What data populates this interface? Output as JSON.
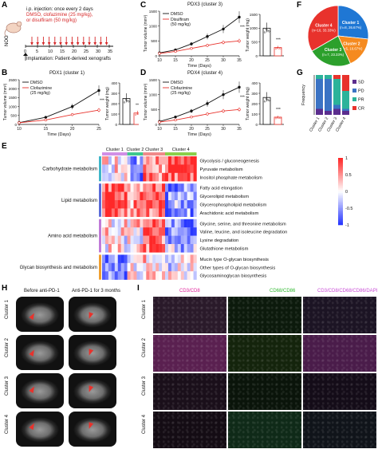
{
  "panels": {
    "A": {
      "label": "A",
      "species": "NOG",
      "injection_line1": "i.p. injection: once every 2 days",
      "injection_line2": "DMSO, clofazimine (25 mg/kg),",
      "injection_line3": "or disulfiram (50 mg/kg)",
      "timeline_ticks": [
        "0",
        "5",
        "10",
        "15",
        "20",
        "25",
        "30",
        "35"
      ],
      "implantation": "Implantation: Patient-derived xenografts",
      "colors": {
        "arrow": "#d62728",
        "text_red": "#d62728"
      }
    },
    "B": {
      "label": "B",
      "title": "PDX1 (cluster 1)",
      "legend": [
        "DMSO",
        "Clofazimine",
        "(25 mg/kg)"
      ],
      "significance": "***",
      "bar_significance": "***"
    },
    "C": {
      "label": "C",
      "title": "PDX3 (cluster 3)",
      "legend": [
        "DMSO",
        "Disulfiram",
        "(50 mg/kg)"
      ],
      "significance": "***",
      "bar_significance": "***"
    },
    "D": {
      "label": "D",
      "title": "PDX4 (cluster 4)",
      "legend": [
        "DMSO",
        "Clofazimine",
        "(25 mg/kg)"
      ],
      "significance": "***",
      "bar_significance": "***"
    },
    "E": {
      "label": "E",
      "cluster_labels": [
        "Cluster 1",
        "Cluster 2",
        "Cluster 3",
        "Cluster 4"
      ],
      "groups": [
        "Carbohydrate metabolism",
        "Lipid metabolism",
        "Amino acid metabolism",
        "Glycan biosynthesis and metabolism"
      ],
      "pathways": [
        "Glycolysis / gluconeogenesis",
        "Pyruvate metabolism",
        "Inositol phosphate metabolism",
        "Fatty acid elongation",
        "Glycerolipid metabolism",
        "Glycerophospholipid metabolism",
        "Arachidonic acid metabolism",
        "Glycine, serine, and threonine metabolism",
        "Valine, leucine, and isoleucine degradation",
        "Lysine degradation",
        "Glutathione metabolism",
        "Mucin type O-glycan biosynthesis",
        "Other types of O-glycan biosynthesis",
        "Glycosaminoglycan biosynthesis"
      ],
      "colorbar_ticks": [
        "1",
        "0.5",
        "0",
        "-0.5",
        "-1"
      ]
    },
    "F": {
      "label": "F",
      "slices": [
        {
          "name": "Cluster 1",
          "detail": "(n=8, 26.67%)",
          "value": 26.67,
          "color": "#1f77d4"
        },
        {
          "name": "Cluster 2",
          "detail": "(n=5, 16.67%)",
          "value": 16.67,
          "color": "#f58a1f"
        },
        {
          "name": "Cluster 3",
          "detail": "(n=7, 23.33%)",
          "value": 23.33,
          "color": "#2ca02c"
        },
        {
          "name": "Cluster 4",
          "detail": "(n=10, 33.33%)",
          "value": 33.33,
          "color": "#e8322c"
        }
      ]
    },
    "G": {
      "label": "G",
      "ylabel": "Frequency",
      "categories": [
        "Cluster 1",
        "Cluster 2",
        "Cluster 3",
        "Cluster 4"
      ],
      "legend": [
        "SD",
        "PD",
        "PR",
        "CR"
      ],
      "legend_colors": [
        "#5b2d8e",
        "#3b73c4",
        "#2bb39a",
        "#e8322c"
      ]
    },
    "H": {
      "label": "H",
      "col1": "Before anti-PD-1",
      "col2": "Anti-PD-1 for 3 months",
      "rows": [
        "Cluster 1",
        "Cluster 2",
        "Cluster 3",
        "Cluster 4"
      ]
    },
    "I": {
      "label": "I",
      "col1": "CD3/CD8",
      "col2": "CD68/CD86",
      "col3": "CD3/CD8/CD68/CD86/DAPI",
      "rows": [
        "Cluster 1",
        "Cluster 2",
        "Cluster 3",
        "Cluster 4"
      ]
    }
  },
  "chart_data": [
    {
      "type": "line",
      "panel": "B",
      "title": "PDX1 (cluster 1)",
      "xlabel": "Time (Days)",
      "ylabel": "Tumor volume (mm³)",
      "x": [
        10,
        15,
        20,
        25
      ],
      "xlim": [
        10,
        25
      ],
      "ylim": [
        0,
        2500
      ],
      "yticks": [
        0,
        500,
        1000,
        1500,
        2000,
        2500
      ],
      "series": [
        {
          "name": "DMSO",
          "color": "#111111",
          "values": [
            100,
            400,
            1000,
            1900
          ]
        },
        {
          "name": "Clofazimine (25 mg/kg)",
          "color": "#e8322c",
          "values": [
            90,
            250,
            550,
            800
          ]
        }
      ]
    },
    {
      "type": "bar",
      "panel": "B",
      "ylabel": "Tumor weight (mg)",
      "ylim": [
        0,
        400
      ],
      "yticks": [
        0,
        100,
        200,
        300,
        400
      ],
      "categories": [
        "DMSO",
        "Clofazimine"
      ],
      "values": [
        250,
        110
      ],
      "colors": [
        "#111111",
        "#e8322c"
      ]
    },
    {
      "type": "line",
      "panel": "C",
      "title": "PDX3 (cluster 3)",
      "xlabel": "Time (Days)",
      "ylabel": "Tumor volume (mm³)",
      "x": [
        10,
        15,
        20,
        25,
        30,
        35
      ],
      "xlim": [
        10,
        35
      ],
      "ylim": [
        0,
        1500
      ],
      "yticks": [
        0,
        500,
        1000,
        1500
      ],
      "series": [
        {
          "name": "DMSO",
          "color": "#111111",
          "values": [
            100,
            200,
            400,
            650,
            900,
            1300
          ]
        },
        {
          "name": "Disulfiram (50 mg/kg)",
          "color": "#e8322c",
          "values": [
            80,
            150,
            250,
            350,
            450,
            500
          ]
        }
      ]
    },
    {
      "type": "bar",
      "panel": "C",
      "ylabel": "Tumor weight (mg)",
      "ylim": [
        0,
        1500
      ],
      "yticks": [
        0,
        500,
        1000,
        1500
      ],
      "categories": [
        "DMSO",
        "Disulfiram"
      ],
      "values": [
        1000,
        300
      ],
      "colors": [
        "#111111",
        "#e8322c"
      ]
    },
    {
      "type": "line",
      "panel": "D",
      "title": "PDX4 (cluster 4)",
      "xlabel": "Time (Days)",
      "ylabel": "Tumor volume (mm³)",
      "x": [
        10,
        15,
        20,
        25,
        30,
        35
      ],
      "xlim": [
        10,
        35
      ],
      "ylim": [
        0,
        1500
      ],
      "yticks": [
        0,
        500,
        1000,
        1500
      ],
      "series": [
        {
          "name": "DMSO",
          "color": "#111111",
          "values": [
            100,
            250,
            450,
            700,
            1000,
            1250
          ]
        },
        {
          "name": "Clofazimine (25 mg/kg)",
          "color": "#e8322c",
          "values": [
            80,
            150,
            250,
            350,
            450,
            500
          ]
        }
      ]
    },
    {
      "type": "bar",
      "panel": "D",
      "ylabel": "Tumor weight (mg)",
      "ylim": [
        0,
        400
      ],
      "yticks": [
        0,
        100,
        200,
        300,
        400
      ],
      "categories": [
        "DMSO",
        "Clofazimine"
      ],
      "values": [
        260,
        70
      ],
      "colors": [
        "#111111",
        "#e8322c"
      ]
    },
    {
      "type": "pie",
      "panel": "F",
      "categories": [
        "Cluster 1",
        "Cluster 2",
        "Cluster 3",
        "Cluster 4"
      ],
      "values": [
        26.67,
        16.67,
        23.33,
        33.33
      ]
    },
    {
      "type": "bar",
      "panel": "G",
      "stacked": true,
      "ylabel": "Frequency",
      "categories": [
        "Cluster 1",
        "Cluster 2",
        "Cluster 3",
        "Cluster 4"
      ],
      "ylim": [
        0,
        1
      ],
      "series": [
        {
          "name": "SD",
          "values": [
            0.15,
            0.1,
            0.15,
            0.1
          ]
        },
        {
          "name": "PD",
          "values": [
            0.75,
            0.8,
            0.1,
            0.05
          ]
        },
        {
          "name": "PR",
          "values": [
            0.1,
            0.1,
            0.65,
            0.45
          ]
        },
        {
          "name": "CR",
          "values": [
            0,
            0,
            0.1,
            0.4
          ]
        }
      ]
    },
    {
      "type": "heatmap",
      "panel": "E",
      "xlabel": "",
      "ylabel": "",
      "rows": 14,
      "columns": 30,
      "zlim": [
        -1,
        1
      ]
    }
  ]
}
